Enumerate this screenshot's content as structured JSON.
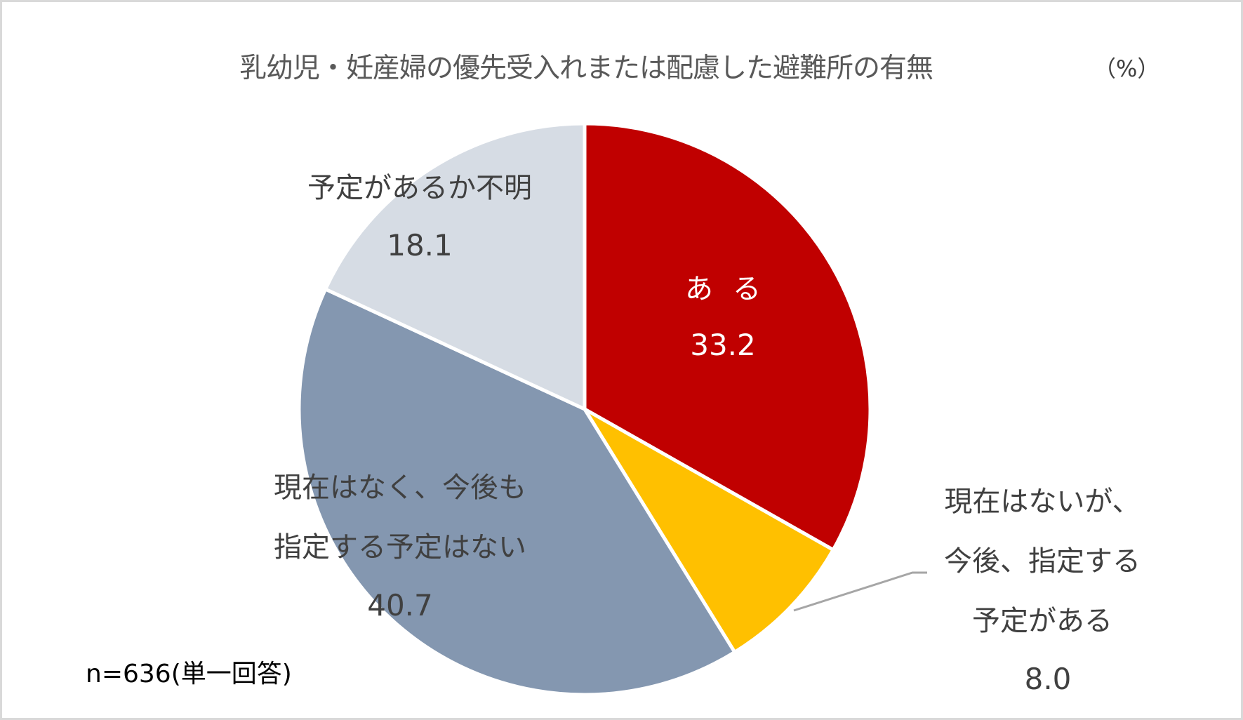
{
  "chart": {
    "title": "乳幼児・妊産婦の優先受入れまたは配慮した避難所の有無",
    "unit": "（%）",
    "note": "n=636(単一回答)"
  },
  "labels": {
    "aru": {
      "name": "ある",
      "value": "33.2"
    },
    "planned": {
      "line1": "現在はないが、",
      "line2": "今後、指定する",
      "line3": "予定がある",
      "value": "8.0"
    },
    "no_plan": {
      "line1": "現在はなく、今後も",
      "line2": "指定する予定はない",
      "value": "40.7"
    },
    "unknown": {
      "name": "予定があるか不明",
      "value": "18.1"
    }
  },
  "chart_data": {
    "type": "pie",
    "title": "乳幼児・妊産婦の優先受入れまたは配慮した避難所の有無",
    "unit": "%",
    "note": "n=636(単一回答)",
    "categories": [
      "ある",
      "現在はないが、今後、指定する予定がある",
      "現在はなく、今後も指定する予定はない",
      "予定があるか不明"
    ],
    "values": [
      33.2,
      8.0,
      40.7,
      18.1
    ],
    "colors": [
      "#C00000",
      "#FFC000",
      "#8497B0",
      "#D6DCE4"
    ],
    "start_angle": "12 o'clock, clockwise",
    "legend": "none (data labels on slices)"
  }
}
